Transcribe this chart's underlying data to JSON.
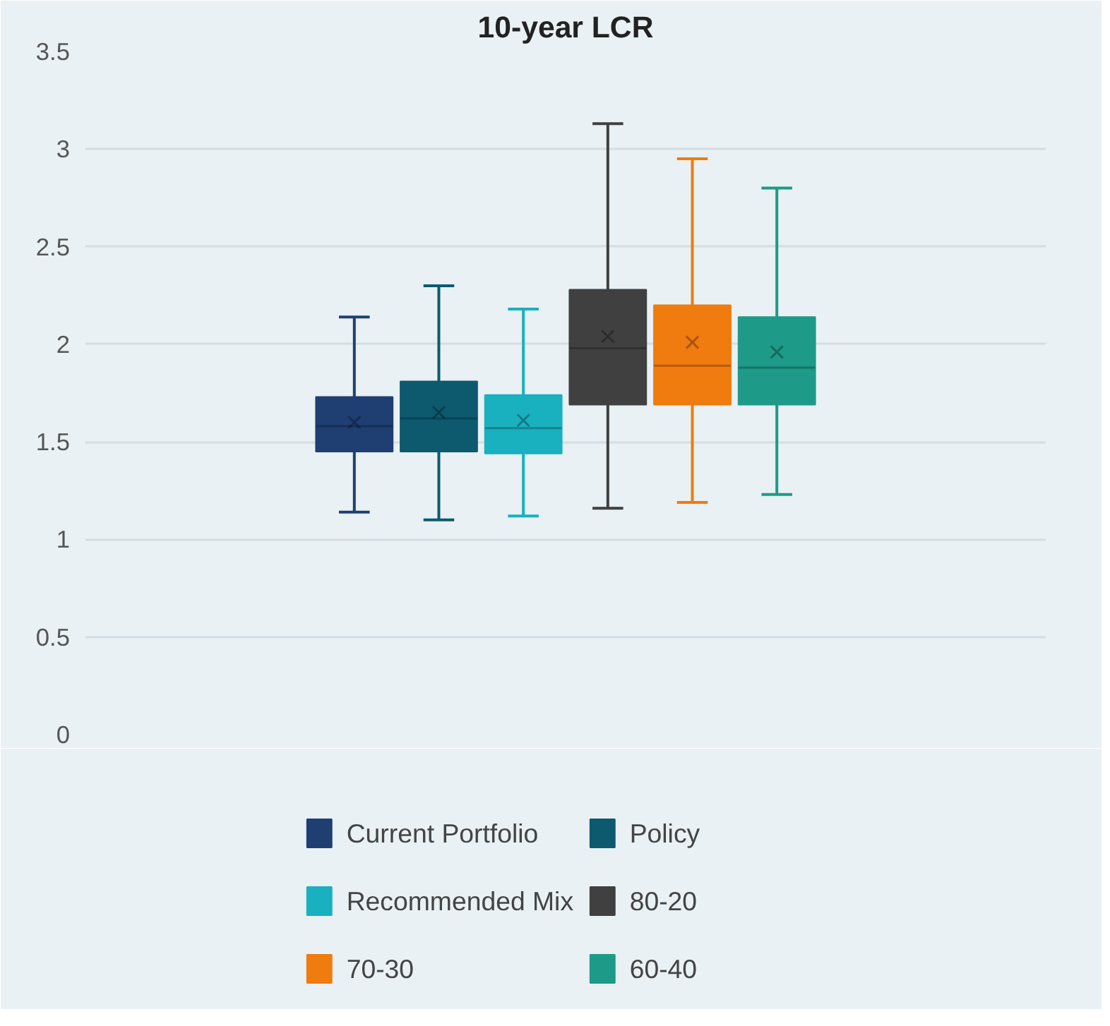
{
  "chart_data": {
    "type": "box",
    "title": "10-year LCR",
    "categories": [
      null
    ],
    "ylim": [
      0,
      3.5
    ],
    "yticks": [
      0,
      0.5,
      1,
      1.5,
      2,
      2.5,
      3,
      3.5
    ],
    "grid": "y",
    "legend": "bottom",
    "tick_labels": "y",
    "marker": "cross",
    "series": [
      {
        "name": "Current Portfolio",
        "color": "#1f3f73",
        "boxes": [
          {
            "low": 1.14,
            "q1": 1.45,
            "median": 1.58,
            "q3": 1.73,
            "high": 2.14,
            "mean": 1.6
          }
        ]
      },
      {
        "name": "Policy",
        "color": "#0d5a6e",
        "boxes": [
          {
            "low": 1.1,
            "q1": 1.45,
            "median": 1.62,
            "q3": 1.81,
            "high": 2.3,
            "mean": 1.65
          }
        ]
      },
      {
        "name": "Recommended Mix",
        "color": "#19b0c0",
        "boxes": [
          {
            "low": 1.12,
            "q1": 1.44,
            "median": 1.57,
            "q3": 1.74,
            "high": 2.18,
            "mean": 1.61
          }
        ]
      },
      {
        "name": "80-20",
        "color": "#404040",
        "boxes": [
          {
            "low": 1.16,
            "q1": 1.69,
            "median": 1.98,
            "q3": 2.28,
            "high": 3.13,
            "mean": 2.04
          }
        ]
      },
      {
        "name": "70-30",
        "color": "#f07b0e",
        "boxes": [
          {
            "low": 1.19,
            "q1": 1.69,
            "median": 1.89,
            "q3": 2.2,
            "high": 2.95,
            "mean": 2.01
          }
        ]
      },
      {
        "name": "60-40",
        "color": "#1e9a88",
        "boxes": [
          {
            "low": 1.23,
            "q1": 1.69,
            "median": 1.88,
            "q3": 2.14,
            "high": 2.8,
            "mean": 1.96
          }
        ]
      }
    ]
  }
}
